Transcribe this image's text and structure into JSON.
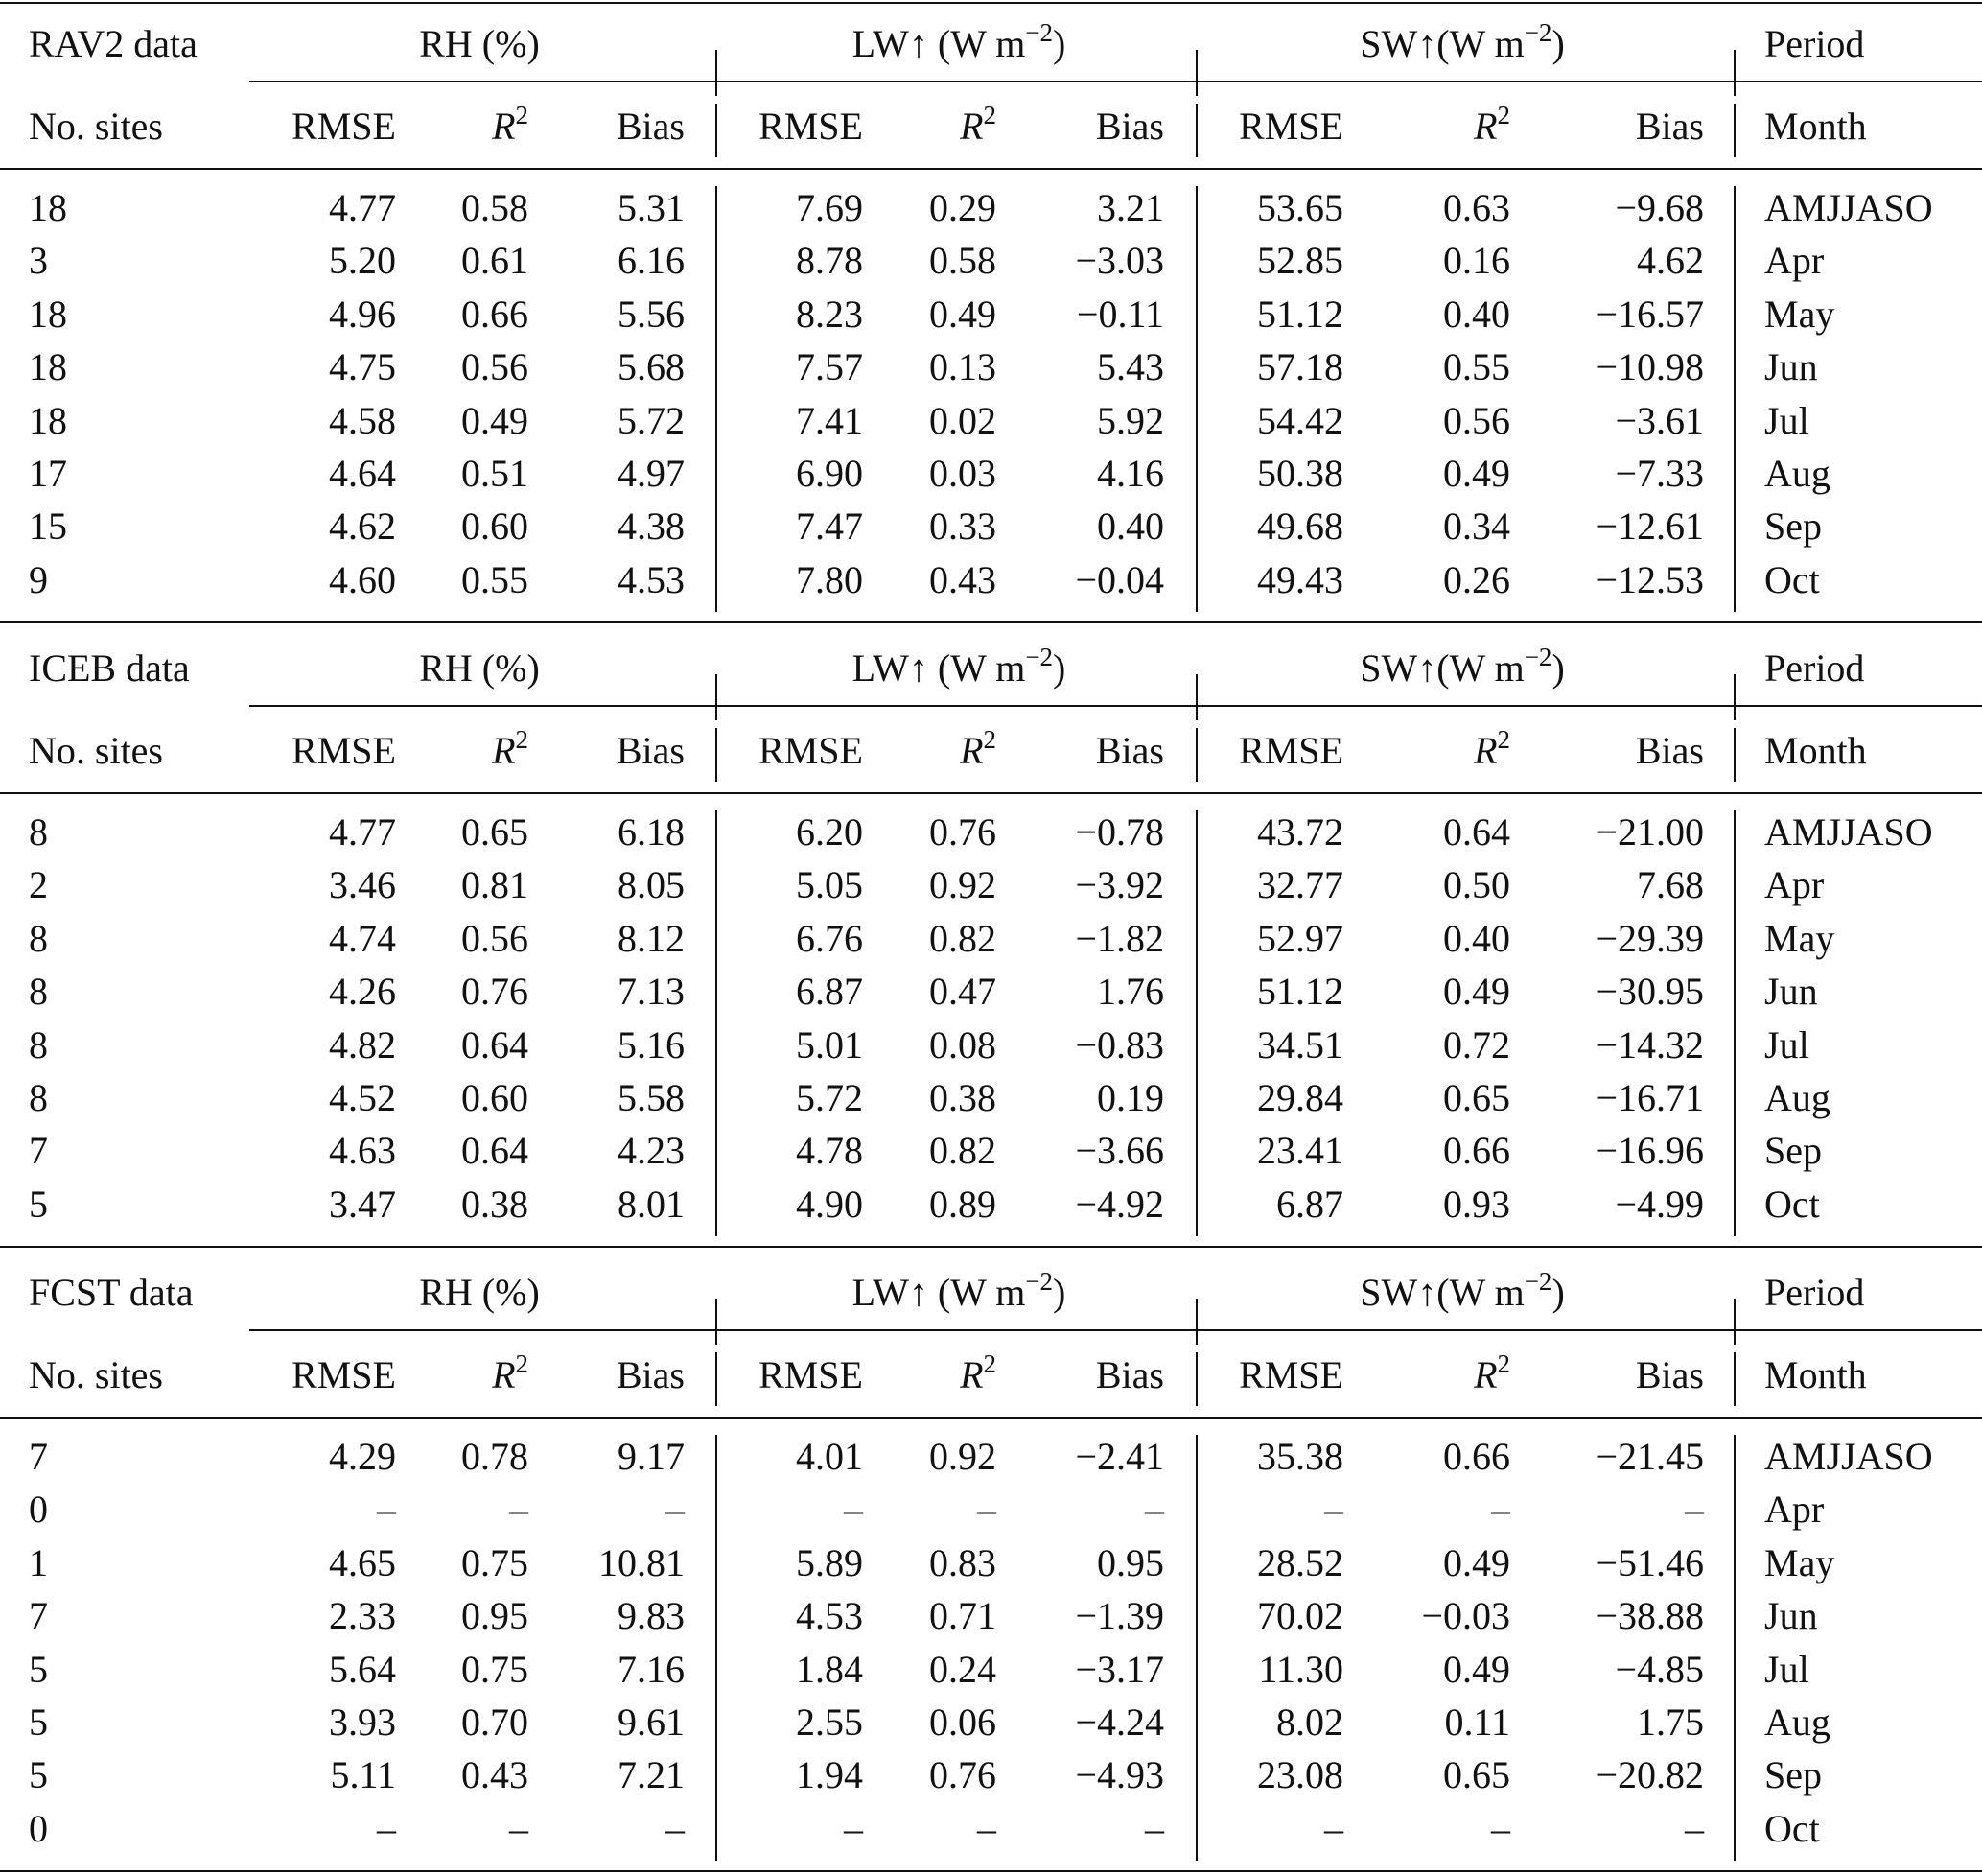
{
  "table": {
    "col_headers": [
      "RMSE",
      "R",
      "Bias",
      "RMSE",
      "R",
      "Bias",
      "RMSE",
      "R",
      "Bias"
    ],
    "r2_sup": "2",
    "sites_header": "No. sites",
    "period_header": "Period",
    "month_header": "Month",
    "groups": [
      {
        "label": "RH (%)",
        "sup": "",
        "close": ""
      },
      {
        "label": "LW↑ (W m",
        "sup": "−2",
        "close": ")"
      },
      {
        "label": "SW↑(W m",
        "sup": "−2",
        "close": ")"
      }
    ],
    "sections": [
      {
        "title": "RAV2 data",
        "rows": [
          [
            "18",
            "4.77",
            "0.58",
            "5.31",
            "7.69",
            "0.29",
            "3.21",
            "53.65",
            "0.63",
            "−9.68",
            "AMJJASO"
          ],
          [
            "3",
            "5.20",
            "0.61",
            "6.16",
            "8.78",
            "0.58",
            "−3.03",
            "52.85",
            "0.16",
            "4.62",
            "Apr"
          ],
          [
            "18",
            "4.96",
            "0.66",
            "5.56",
            "8.23",
            "0.49",
            "−0.11",
            "51.12",
            "0.40",
            "−16.57",
            "May"
          ],
          [
            "18",
            "4.75",
            "0.56",
            "5.68",
            "7.57",
            "0.13",
            "5.43",
            "57.18",
            "0.55",
            "−10.98",
            "Jun"
          ],
          [
            "18",
            "4.58",
            "0.49",
            "5.72",
            "7.41",
            "0.02",
            "5.92",
            "54.42",
            "0.56",
            "−3.61",
            "Jul"
          ],
          [
            "17",
            "4.64",
            "0.51",
            "4.97",
            "6.90",
            "0.03",
            "4.16",
            "50.38",
            "0.49",
            "−7.33",
            "Aug"
          ],
          [
            "15",
            "4.62",
            "0.60",
            "4.38",
            "7.47",
            "0.33",
            "0.40",
            "49.68",
            "0.34",
            "−12.61",
            "Sep"
          ],
          [
            "9",
            "4.60",
            "0.55",
            "4.53",
            "7.80",
            "0.43",
            "−0.04",
            "49.43",
            "0.26",
            "−12.53",
            "Oct"
          ]
        ]
      },
      {
        "title": "ICEB data",
        "rows": [
          [
            "8",
            "4.77",
            "0.65",
            "6.18",
            "6.20",
            "0.76",
            "−0.78",
            "43.72",
            "0.64",
            "−21.00",
            "AMJJASO"
          ],
          [
            "2",
            "3.46",
            "0.81",
            "8.05",
            "5.05",
            "0.92",
            "−3.92",
            "32.77",
            "0.50",
            "7.68",
            "Apr"
          ],
          [
            "8",
            "4.74",
            "0.56",
            "8.12",
            "6.76",
            "0.82",
            "−1.82",
            "52.97",
            "0.40",
            "−29.39",
            "May"
          ],
          [
            "8",
            "4.26",
            "0.76",
            "7.13",
            "6.87",
            "0.47",
            "1.76",
            "51.12",
            "0.49",
            "−30.95",
            "Jun"
          ],
          [
            "8",
            "4.82",
            "0.64",
            "5.16",
            "5.01",
            "0.08",
            "−0.83",
            "34.51",
            "0.72",
            "−14.32",
            "Jul"
          ],
          [
            "8",
            "4.52",
            "0.60",
            "5.58",
            "5.72",
            "0.38",
            "0.19",
            "29.84",
            "0.65",
            "−16.71",
            "Aug"
          ],
          [
            "7",
            "4.63",
            "0.64",
            "4.23",
            "4.78",
            "0.82",
            "−3.66",
            "23.41",
            "0.66",
            "−16.96",
            "Sep"
          ],
          [
            "5",
            "3.47",
            "0.38",
            "8.01",
            "4.90",
            "0.89",
            "−4.92",
            "6.87",
            "0.93",
            "−4.99",
            "Oct"
          ]
        ]
      },
      {
        "title": "FCST data",
        "rows": [
          [
            "7",
            "4.29",
            "0.78",
            "9.17",
            "4.01",
            "0.92",
            "−2.41",
            "35.38",
            "0.66",
            "−21.45",
            "AMJJASO"
          ],
          [
            "0",
            "–",
            "–",
            "–",
            "–",
            "–",
            "–",
            "–",
            "–",
            "–",
            "Apr"
          ],
          [
            "1",
            "4.65",
            "0.75",
            "10.81",
            "5.89",
            "0.83",
            "0.95",
            "28.52",
            "0.49",
            "−51.46",
            "May"
          ],
          [
            "7",
            "2.33",
            "0.95",
            "9.83",
            "4.53",
            "0.71",
            "−1.39",
            "70.02",
            "−0.03",
            "−38.88",
            "Jun"
          ],
          [
            "5",
            "5.64",
            "0.75",
            "7.16",
            "1.84",
            "0.24",
            "−3.17",
            "11.30",
            "0.49",
            "−4.85",
            "Jul"
          ],
          [
            "5",
            "3.93",
            "0.70",
            "9.61",
            "2.55",
            "0.06",
            "−4.24",
            "8.02",
            "0.11",
            "1.75",
            "Aug"
          ],
          [
            "5",
            "5.11",
            "0.43",
            "7.21",
            "1.94",
            "0.76",
            "−4.93",
            "23.08",
            "0.65",
            "−20.82",
            "Sep"
          ],
          [
            "0",
            "–",
            "–",
            "–",
            "–",
            "–",
            "–",
            "–",
            "–",
            "–",
            "Oct"
          ]
        ]
      }
    ]
  }
}
